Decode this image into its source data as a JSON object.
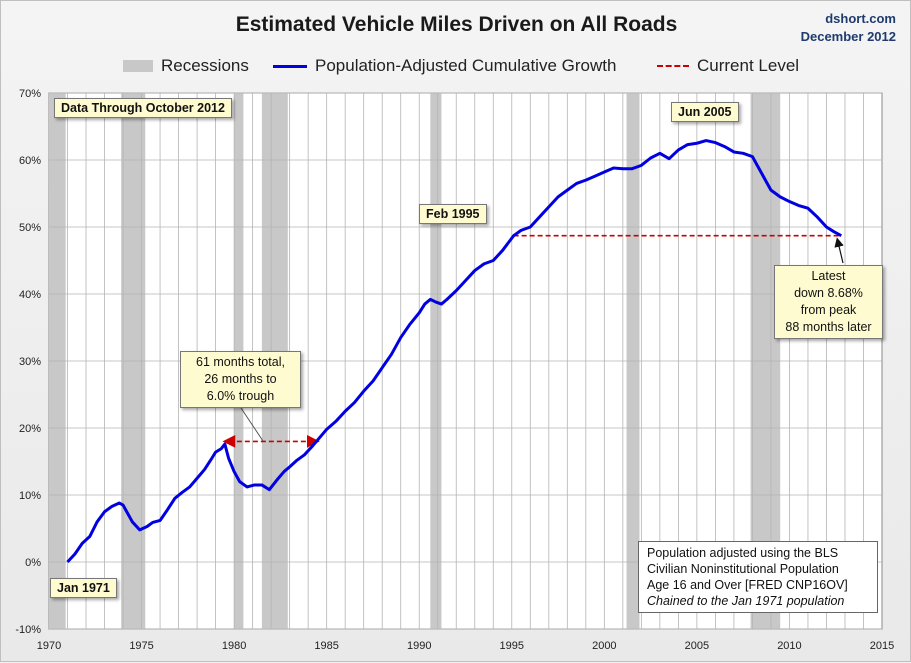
{
  "header": {
    "title": "Estimated Vehicle Miles Driven on All Roads",
    "source": "dshort.com",
    "date": "December 2012"
  },
  "legend": {
    "recessions": "Recessions",
    "series": "Population-Adjusted Cumulative Growth",
    "current": "Current Level"
  },
  "annotations": {
    "data_through": "Data Through October 2012",
    "jun2005": "Jun 2005",
    "feb1995": "Feb 1995",
    "jan1971": "Jan 1971",
    "trough_l1": "61 months total,",
    "trough_l2": "26 months to",
    "trough_l3": "6.0% trough",
    "latest_l1": "Latest",
    "latest_l2": "down 8.68%",
    "latest_l3": "from peak",
    "latest_l4": "88 months later"
  },
  "note": {
    "line1": "Population adjusted using the BLS",
    "line2": "Civilian Noninstitutional Population",
    "line3": "Age 16 and Over  [FRED CNP16OV]",
    "line4": "Chained to the Jan 1971 population"
  },
  "colors": {
    "series": "#0000e0",
    "current": "#cc0000",
    "recession": "#c8c8c8",
    "grid": "#b4b4b4",
    "plot_bg": "#ffffff"
  },
  "chart_data": {
    "type": "line",
    "title": "Estimated Vehicle Miles Driven on All Roads",
    "xlim": [
      1970,
      2015
    ],
    "ylim": [
      -10,
      70
    ],
    "xticks": [
      1970,
      1975,
      1980,
      1985,
      1990,
      1995,
      2000,
      2005,
      2010,
      2015
    ],
    "xtick_labels": [
      "1970",
      "1975",
      "1980",
      "1985",
      "1990",
      "1995",
      "2000",
      "2005",
      "2010",
      "2015"
    ],
    "yticks": [
      -10,
      0,
      10,
      20,
      30,
      40,
      50,
      60,
      70
    ],
    "ytick_labels": [
      "-10%",
      "0%",
      "10%",
      "20%",
      "30%",
      "40%",
      "50%",
      "60%",
      "70%"
    ],
    "grid": true,
    "legend_position": "top",
    "recessions": [
      [
        1970.0,
        1970.9
      ],
      [
        1973.9,
        1975.2
      ],
      [
        1980.0,
        1980.5
      ],
      [
        1981.5,
        1982.9
      ],
      [
        1990.6,
        1991.2
      ],
      [
        2001.2,
        2001.9
      ],
      [
        2007.9,
        2009.5
      ]
    ],
    "current_level": {
      "value": 48.7,
      "from": 1995.1,
      "to": 2012.8
    },
    "trough_span": {
      "from": 1979.5,
      "to": 1984.5,
      "value": 18
    },
    "series": [
      {
        "name": "Population-Adjusted Cumulative Growth",
        "x": [
          1971.0,
          1971.4,
          1971.8,
          1972.2,
          1972.6,
          1973.0,
          1973.4,
          1973.8,
          1974.0,
          1974.2,
          1974.5,
          1974.9,
          1975.3,
          1975.6,
          1976.0,
          1976.4,
          1976.8,
          1977.2,
          1977.6,
          1978.0,
          1978.4,
          1978.8,
          1979.0,
          1979.3,
          1979.5,
          1979.7,
          1980.0,
          1980.3,
          1980.7,
          1981.1,
          1981.5,
          1981.9,
          1982.3,
          1982.7,
          1983.0,
          1983.4,
          1983.8,
          1984.2,
          1984.6,
          1985.0,
          1985.5,
          1986.0,
          1986.5,
          1987.0,
          1987.5,
          1988.0,
          1988.5,
          1989.0,
          1989.5,
          1990.0,
          1990.3,
          1990.6,
          1990.9,
          1991.2,
          1991.5,
          1992.0,
          1992.5,
          1993.0,
          1993.5,
          1994.0,
          1994.5,
          1995.1,
          1995.5,
          1996.0,
          1996.5,
          1997.0,
          1997.5,
          1998.0,
          1998.5,
          1999.0,
          1999.5,
          2000.0,
          2000.5,
          2001.0,
          2001.5,
          2002.0,
          2002.5,
          2003.0,
          2003.5,
          2004.0,
          2004.5,
          2005.0,
          2005.5,
          2006.0,
          2006.5,
          2007.0,
          2007.5,
          2008.0,
          2008.5,
          2009.0,
          2009.5,
          2010.0,
          2010.5,
          2011.0,
          2011.5,
          2012.0,
          2012.4,
          2012.8
        ],
        "values": [
          0.0,
          1.2,
          2.8,
          3.8,
          6.0,
          7.5,
          8.3,
          8.8,
          8.5,
          7.5,
          6.0,
          4.8,
          5.3,
          5.9,
          6.2,
          7.8,
          9.5,
          10.4,
          11.2,
          12.5,
          13.8,
          15.5,
          16.4,
          16.9,
          17.6,
          15.5,
          13.5,
          12.0,
          11.2,
          11.5,
          11.5,
          10.8,
          12.2,
          13.5,
          14.2,
          15.2,
          16.0,
          17.2,
          18.5,
          19.8,
          21.0,
          22.5,
          23.8,
          25.5,
          27.0,
          29.0,
          31.0,
          33.5,
          35.5,
          37.2,
          38.5,
          39.2,
          38.8,
          38.5,
          39.2,
          40.5,
          42.0,
          43.5,
          44.5,
          45.0,
          46.5,
          48.7,
          49.5,
          50.0,
          51.5,
          53.0,
          54.5,
          55.5,
          56.5,
          57.0,
          57.6,
          58.2,
          58.8,
          58.7,
          58.7,
          59.2,
          60.3,
          61.0,
          60.2,
          61.5,
          62.3,
          62.5,
          62.9,
          62.6,
          62.0,
          61.2,
          61.0,
          60.5,
          58.0,
          55.5,
          54.5,
          53.8,
          53.2,
          52.8,
          51.5,
          50.0,
          49.3,
          48.7
        ]
      }
    ]
  }
}
